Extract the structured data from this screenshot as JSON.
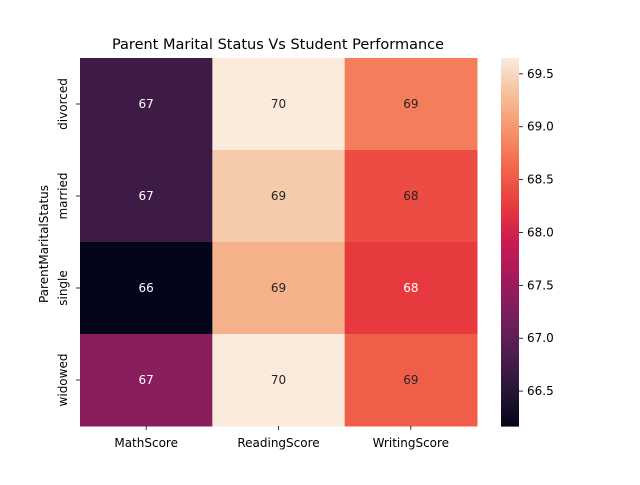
{
  "chart_data": {
    "type": "heatmap",
    "title": "Parent Marital Status Vs Student Performance",
    "xlabel": "",
    "ylabel": "ParentMaritalStatus",
    "x_categories": [
      "MathScore",
      "ReadingScore",
      "WritingScore"
    ],
    "y_categories": [
      "divorced",
      "married",
      "single",
      "widowed"
    ],
    "values": [
      [
        66.7,
        69.65,
        68.8
      ],
      [
        66.7,
        69.4,
        68.4
      ],
      [
        66.17,
        69.2,
        68.25
      ],
      [
        67.37,
        69.65,
        68.55
      ]
    ],
    "annotations": [
      [
        "67",
        "70",
        "69"
      ],
      [
        "67",
        "69",
        "68"
      ],
      [
        "66",
        "69",
        "68"
      ],
      [
        "67",
        "70",
        "69"
      ]
    ],
    "colorbar": {
      "min": 66.17,
      "max": 69.65,
      "ticks": [
        66.5,
        67.0,
        67.5,
        68.0,
        68.5,
        69.0,
        69.5
      ],
      "tick_labels": [
        "66.5",
        "67.0",
        "67.5",
        "68.0",
        "68.5",
        "69.0",
        "69.5"
      ],
      "colormap": "rocket"
    }
  }
}
